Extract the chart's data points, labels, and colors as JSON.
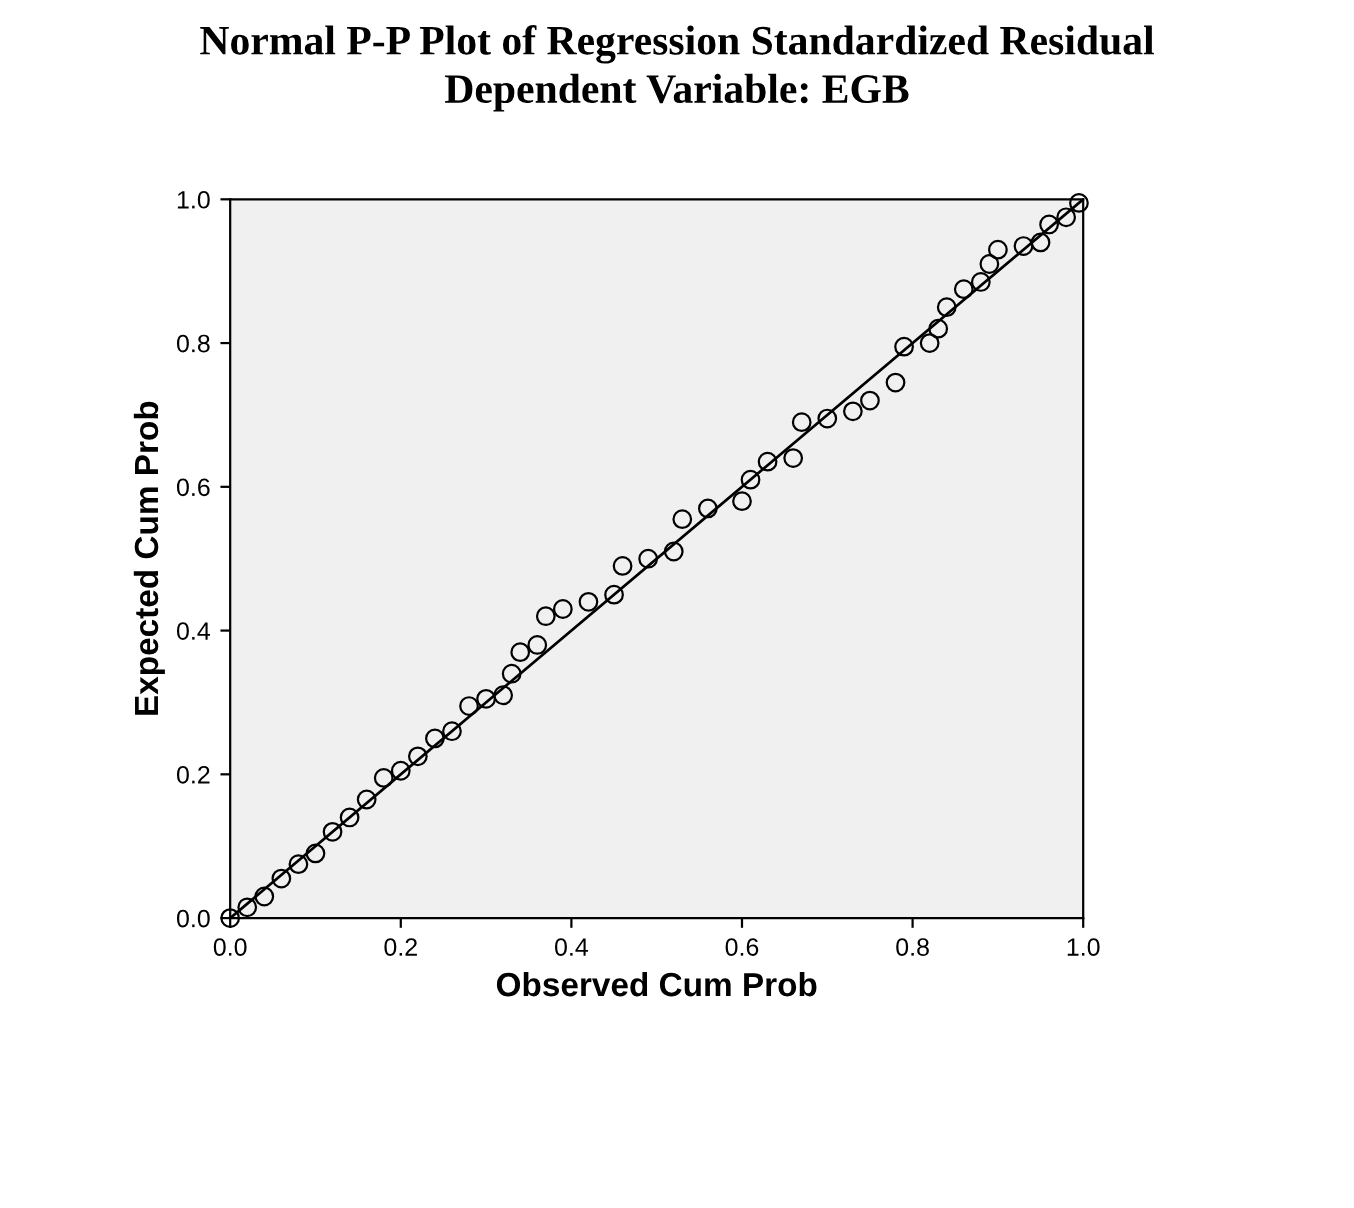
{
  "chart_data": {
    "type": "scatter",
    "title": "Normal P-P Plot of Regression Standardized Residual",
    "subtitle": "Dependent Variable: EGB",
    "xlabel": "Observed Cum Prob",
    "ylabel": "Expected Cum Prob",
    "xlim": [
      0,
      1
    ],
    "ylim": [
      0,
      1
    ],
    "xticks": [
      {
        "value": 0,
        "label": "0.0"
      },
      {
        "value": 0.2,
        "label": "0.2"
      },
      {
        "value": 0.4,
        "label": "0.4"
      },
      {
        "value": 0.6,
        "label": "0.6"
      },
      {
        "value": 0.8,
        "label": "0.8"
      },
      {
        "value": 1,
        "label": "1.0"
      }
    ],
    "yticks": [
      {
        "value": 0,
        "label": "0.0"
      },
      {
        "value": 0.2,
        "label": "0.2"
      },
      {
        "value": 0.4,
        "label": "0.4"
      },
      {
        "value": 0.6,
        "label": "0.6"
      },
      {
        "value": 0.8,
        "label": "0.8"
      },
      {
        "value": 1,
        "label": "1.0"
      }
    ],
    "grid": false,
    "series": [
      {
        "color": "#000000",
        "marker": "circle",
        "x": [
          0,
          0.02,
          0.04,
          0.06,
          0.08,
          0.1,
          0.12,
          0.14,
          0.16,
          0.18,
          0.2,
          0.22,
          0.24,
          0.26,
          0.28,
          0.3,
          0.32,
          0.33,
          0.34,
          0.36,
          0.37,
          0.39,
          0.42,
          0.45,
          0.46,
          0.49,
          0.52,
          0.53,
          0.56,
          0.6,
          0.61,
          0.63,
          0.66,
          0.67,
          0.7,
          0.73,
          0.75,
          0.78,
          0.79,
          0.82,
          0.83,
          0.84,
          0.86,
          0.88,
          0.89,
          0.9,
          0.93,
          0.95,
          0.96,
          0.98,
          0.995
        ],
        "values": [
          0,
          0.015,
          0.03,
          0.055,
          0.075,
          0.09,
          0.12,
          0.14,
          0.165,
          0.195,
          0.205,
          0.225,
          0.25,
          0.26,
          0.295,
          0.305,
          0.31,
          0.34,
          0.37,
          0.38,
          0.42,
          0.43,
          0.44,
          0.45,
          0.49,
          0.5,
          0.51,
          0.555,
          0.57,
          0.58,
          0.61,
          0.635,
          0.64,
          0.69,
          0.695,
          0.705,
          0.72,
          0.745,
          0.795,
          0.8,
          0.82,
          0.85,
          0.875,
          0.885,
          0.91,
          0.93,
          0.935,
          0.94,
          0.965,
          0.975,
          0.995
        ]
      },
      {
        "type": "line",
        "color": "#000000",
        "marker": "none",
        "line_style": "solid",
        "x": [
          0,
          1
        ],
        "values": [
          0,
          1
        ]
      }
    ]
  }
}
